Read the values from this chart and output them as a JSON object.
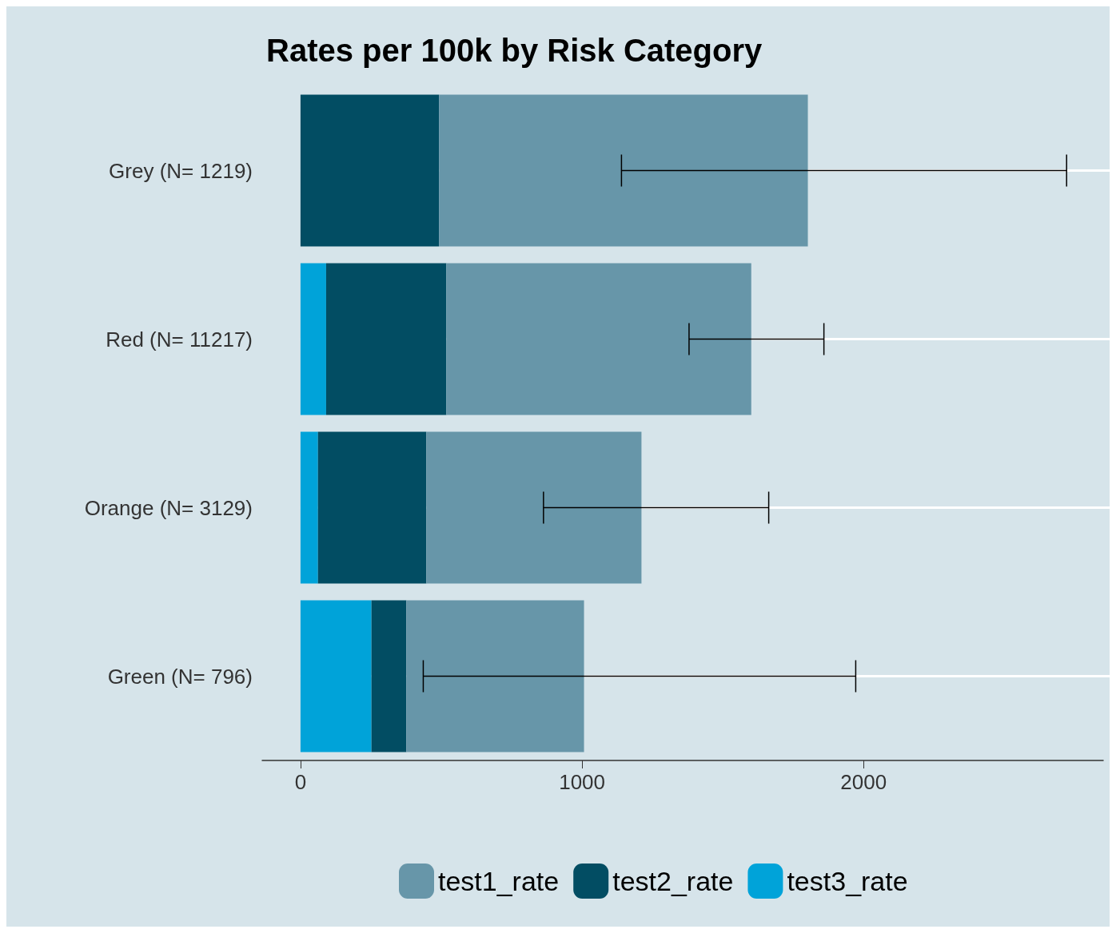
{
  "chart_data": {
    "type": "bar",
    "title": "Rates per 100k by Risk Category",
    "orientation": "horizontal",
    "stacked": true,
    "categories": [
      "Grey (N= 1219)",
      "Red (N= 11217)",
      "Orange (N= 3129)",
      "Green (N= 796)"
    ],
    "series": [
      {
        "name": "test3_rate",
        "color": "#00a3d9",
        "values": [
          0,
          91,
          62,
          252
        ]
      },
      {
        "name": "test2_rate",
        "color": "#024d63",
        "values": [
          492,
          427,
          385,
          124
        ]
      },
      {
        "name": "test1_rate",
        "color": "#6796a9",
        "values": [
          1310,
          1083,
          764,
          631
        ],
        "errors": [
          [
            1140,
            2721
          ],
          [
            1380,
            1859
          ],
          [
            863,
            1663
          ],
          [
            436,
            1972
          ]
        ]
      }
    ],
    "xlim": [
      -136,
      2851
    ],
    "xticks": [
      0,
      1000,
      2000
    ],
    "grid": "y",
    "legend": "bottom"
  }
}
